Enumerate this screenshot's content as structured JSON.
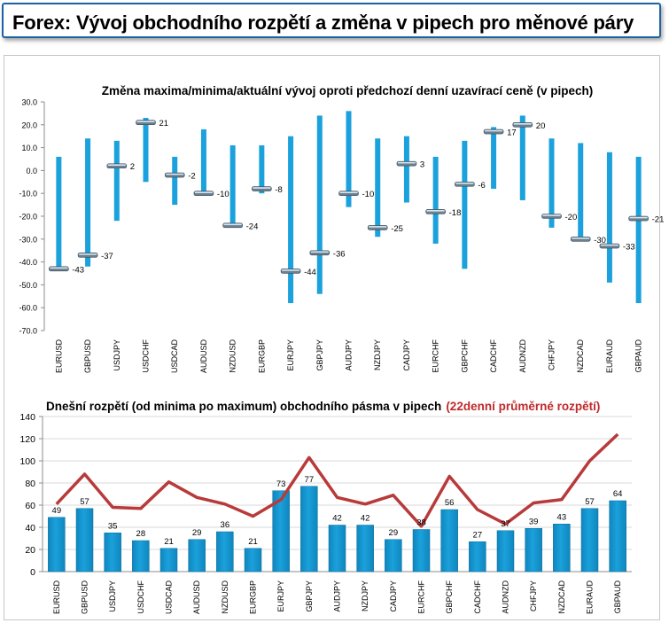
{
  "header": {
    "title": "Forex: Vývoj obchodního rozpětí a změna v pipech pro měnové páry"
  },
  "colors": {
    "bar": "#1ba1dc",
    "line": "#b83a3a",
    "avg_title": "#c0292b",
    "frame": "#1a63a8"
  },
  "chart_data": [
    {
      "type": "range",
      "title": "Změna maxima/minima/aktuální vývoj oproti předchozí denní uzavírací ceně (v pipech)",
      "ylim": [
        -70,
        30
      ],
      "yticks": [
        30,
        20,
        10,
        0,
        -10,
        -20,
        -30,
        -40,
        -50,
        -60,
        -70
      ],
      "ytick_labels": [
        "30.0",
        "20.0",
        "10.0",
        "0.0",
        "-10.0",
        "-20.0",
        "-30.0",
        "-40.0",
        "-50.0",
        "-60.0",
        "-70.0"
      ],
      "categories": [
        "EURUSD",
        "GBPUSD",
        "USDJPY",
        "USDCHF",
        "USDCAD",
        "AUDUSD",
        "NZDUSD",
        "EURGBP",
        "EURJPY",
        "GBPJPY",
        "AUDJPY",
        "NZDJPY",
        "CADJPY",
        "EURCHF",
        "GBPCHF",
        "CADCHF",
        "AUDNZD",
        "CHFJPY",
        "NZDCAD",
        "EURAUD",
        "GBPAUD"
      ],
      "high": [
        6,
        14,
        13,
        23,
        6,
        18,
        11,
        11,
        15,
        24,
        26,
        14,
        15,
        6,
        13,
        19,
        24,
        14,
        12,
        8,
        6
      ],
      "low": [
        -43,
        -42,
        -22,
        -5,
        -15,
        -11,
        -25,
        -10,
        -58,
        -54,
        -16,
        -29,
        -14,
        -32,
        -43,
        -8,
        -13,
        -25,
        -31,
        -49,
        -58
      ],
      "current": [
        -43,
        -37,
        2,
        21,
        -2,
        -10,
        -24,
        -8,
        -44,
        -36,
        -10,
        -25,
        3,
        -18,
        -6,
        17,
        20,
        -20,
        -30,
        -33,
        -21
      ],
      "labels": [
        "-43",
        "-37",
        "2",
        "21",
        "-2",
        "-10",
        "-24",
        "-8",
        "-44",
        "-36",
        "-10",
        "-25",
        "3",
        "-18",
        "-6",
        "17",
        "20",
        "-20",
        "-30",
        "-33",
        "-21"
      ]
    },
    {
      "type": "bar",
      "title": "Dnešní rozpětí (od minima po maximum) obchodního pásma v pipech",
      "title_highlight": "(22denní průměrné rozpětí)",
      "ylim": [
        0,
        140
      ],
      "yticks": [
        0,
        20,
        40,
        60,
        80,
        100,
        120,
        140
      ],
      "ytick_labels": [
        "0",
        "20",
        "40",
        "60",
        "80",
        "100",
        "120",
        "140"
      ],
      "categories": [
        "EURUSD",
        "GBPUSD",
        "USDJPY",
        "USDCHF",
        "USDCAD",
        "AUDUSD",
        "NZDUSD",
        "EURGBP",
        "EURJPY",
        "GBPJPY",
        "AUDJPY",
        "NZDJPY",
        "CADJPY",
        "EURCHF",
        "GBPCHF",
        "CADCHF",
        "AUDNZD",
        "CHFJPY",
        "NZDCAD",
        "EURAUD",
        "GBPAUD"
      ],
      "series": [
        {
          "type": "bar",
          "values": [
            49,
            57,
            35,
            28,
            21,
            29,
            36,
            21,
            73,
            77,
            42,
            42,
            29,
            38,
            56,
            27,
            37,
            39,
            43,
            57,
            64
          ],
          "labels": [
            "49",
            "57",
            "35",
            "28",
            "21",
            "29",
            "36",
            "21",
            "73",
            "77",
            "42",
            "42",
            "29",
            "38",
            "56",
            "27",
            "37",
            "39",
            "43",
            "57",
            "64"
          ]
        },
        {
          "type": "line",
          "values": [
            61,
            88,
            58,
            57,
            81,
            67,
            61,
            50,
            65,
            103,
            67,
            61,
            69,
            41,
            86,
            56,
            43,
            62,
            65,
            100,
            124
          ]
        }
      ]
    }
  ]
}
